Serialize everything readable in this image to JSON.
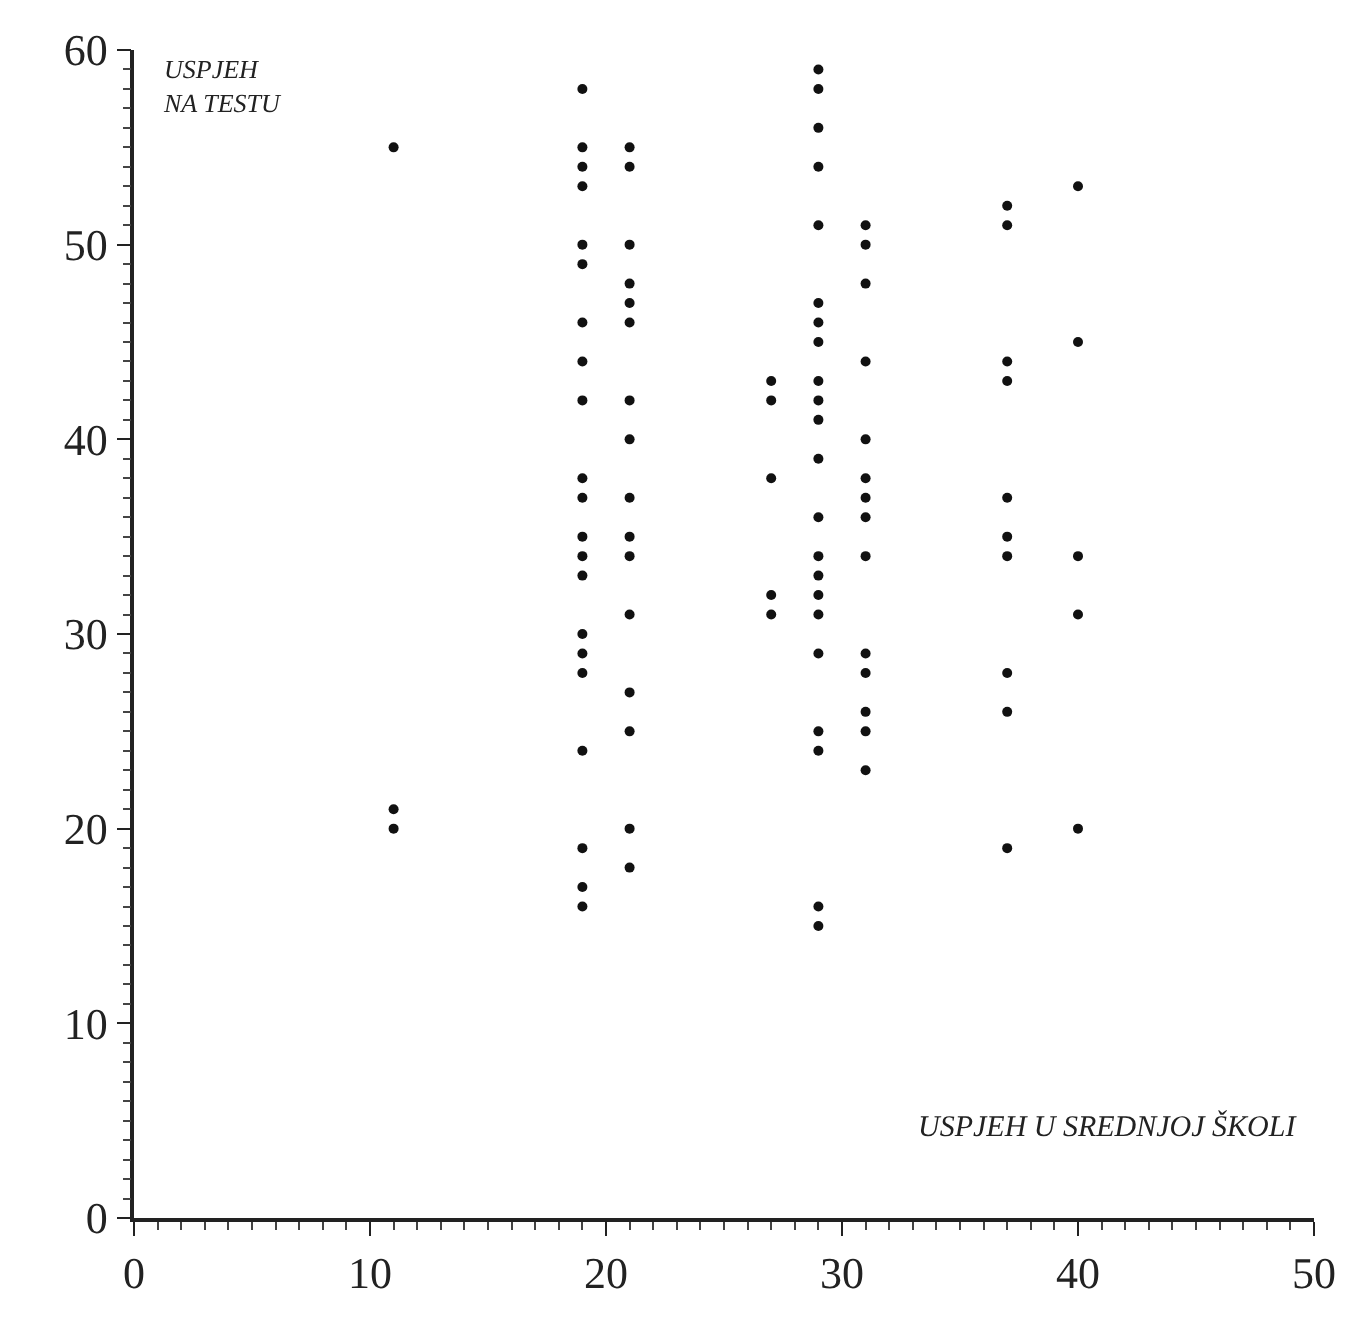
{
  "chart_data": {
    "type": "scatter",
    "xlabel": "USPJEH U SREDNJOJ ŠKOLI",
    "ylabel": "USPJEH\nNA TESTU",
    "x": [
      11,
      11,
      11,
      19,
      19,
      19,
      19,
      19,
      19,
      19,
      19,
      19,
      19,
      19,
      19,
      19,
      19,
      19,
      19,
      19,
      19,
      19,
      19,
      19,
      21,
      21,
      21,
      21,
      21,
      21,
      21,
      21,
      21,
      21,
      21,
      21,
      21,
      21,
      21,
      21,
      27,
      27,
      27,
      27,
      27,
      29,
      29,
      29,
      29,
      29,
      29,
      29,
      29,
      29,
      29,
      29,
      29,
      29,
      29,
      29,
      29,
      29,
      29,
      29,
      29,
      29,
      29,
      31,
      31,
      31,
      31,
      31,
      31,
      31,
      31,
      31,
      31,
      31,
      31,
      31,
      31,
      37,
      37,
      37,
      37,
      37,
      37,
      37,
      37,
      37,
      37,
      40,
      40,
      40,
      40,
      40
    ],
    "values": [
      55,
      21,
      20,
      58,
      55,
      54,
      53,
      50,
      49,
      46,
      44,
      42,
      38,
      37,
      35,
      34,
      33,
      30,
      29,
      28,
      24,
      19,
      17,
      16,
      55,
      54,
      50,
      48,
      47,
      46,
      42,
      40,
      37,
      35,
      34,
      31,
      27,
      25,
      20,
      18,
      43,
      42,
      38,
      32,
      31,
      59,
      58,
      56,
      54,
      51,
      47,
      46,
      45,
      43,
      42,
      41,
      39,
      36,
      34,
      33,
      32,
      31,
      29,
      25,
      24,
      16,
      15,
      51,
      50,
      48,
      44,
      40,
      38,
      37,
      36,
      34,
      29,
      28,
      26,
      25,
      23,
      52,
      51,
      44,
      43,
      37,
      35,
      34,
      28,
      26,
      19,
      53,
      45,
      34,
      31,
      20
    ],
    "color": "#111111",
    "marker": "circle",
    "xlim": [
      0,
      50
    ],
    "xticks": [
      0,
      10,
      20,
      30,
      40,
      50
    ],
    "ylim": [
      0,
      60
    ],
    "yticks": [
      0,
      10,
      20,
      30,
      40,
      50,
      60
    ]
  }
}
